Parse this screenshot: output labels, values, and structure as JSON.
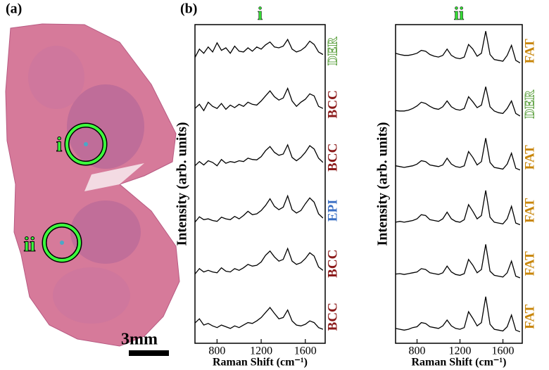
{
  "panel_a": {
    "label": "(a)",
    "markers": [
      "i",
      "ii"
    ],
    "scale_bar": "3mm"
  },
  "panel_b": {
    "label": "(b)"
  },
  "chart_data": [
    {
      "type": "line",
      "title": "i",
      "xlabel": "Raman Shift (cm⁻¹)",
      "ylabel": "Intensity (arb. units)",
      "line_color": "#000000",
      "xlim": [
        600,
        1780
      ],
      "xticks": [
        800,
        1200,
        1600
      ],
      "ylim": [
        0,
        1
      ],
      "x": [
        600,
        640,
        680,
        720,
        760,
        800,
        840,
        880,
        920,
        960,
        1000,
        1040,
        1080,
        1120,
        1160,
        1200,
        1240,
        1280,
        1320,
        1360,
        1400,
        1440,
        1480,
        1520,
        1560,
        1600,
        1640,
        1680,
        1720,
        1760
      ],
      "series": [
        {
          "name": "DER",
          "color": "#6aa84f",
          "outline": true,
          "values": [
            0.35,
            0.55,
            0.45,
            0.6,
            0.48,
            0.7,
            0.52,
            0.58,
            0.45,
            0.62,
            0.5,
            0.48,
            0.58,
            0.5,
            0.6,
            0.55,
            0.65,
            0.72,
            0.6,
            0.58,
            0.62,
            0.78,
            0.55,
            0.48,
            0.52,
            0.6,
            0.74,
            0.66,
            0.48,
            0.42
          ]
        },
        {
          "name": "BCC",
          "color": "#8b1a1a",
          "outline": false,
          "values": [
            0.4,
            0.5,
            0.35,
            0.55,
            0.45,
            0.4,
            0.52,
            0.38,
            0.48,
            0.42,
            0.5,
            0.45,
            0.55,
            0.5,
            0.48,
            0.58,
            0.7,
            0.82,
            0.68,
            0.6,
            0.65,
            0.88,
            0.58,
            0.45,
            0.55,
            0.62,
            0.75,
            0.7,
            0.45,
            0.4
          ]
        },
        {
          "name": "BCC",
          "color": "#8b1a1a",
          "outline": false,
          "values": [
            0.3,
            0.4,
            0.32,
            0.42,
            0.38,
            0.3,
            0.45,
            0.36,
            0.4,
            0.38,
            0.42,
            0.4,
            0.48,
            0.45,
            0.44,
            0.52,
            0.66,
            0.76,
            0.62,
            0.55,
            0.58,
            0.8,
            0.5,
            0.42,
            0.5,
            0.62,
            0.78,
            0.7,
            0.48,
            0.38
          ]
        },
        {
          "name": "EPI",
          "color": "#3a6fc4",
          "outline": false,
          "values": [
            0.22,
            0.35,
            0.28,
            0.3,
            0.26,
            0.24,
            0.34,
            0.3,
            0.28,
            0.36,
            0.3,
            0.38,
            0.48,
            0.4,
            0.42,
            0.5,
            0.62,
            0.78,
            0.6,
            0.52,
            0.58,
            0.85,
            0.52,
            0.44,
            0.5,
            0.66,
            0.8,
            0.7,
            0.42,
            0.32
          ]
        },
        {
          "name": "BCC",
          "color": "#8b1a1a",
          "outline": false,
          "values": [
            0.25,
            0.38,
            0.3,
            0.34,
            0.3,
            0.28,
            0.4,
            0.32,
            0.3,
            0.38,
            0.34,
            0.4,
            0.48,
            0.44,
            0.46,
            0.54,
            0.7,
            0.8,
            0.66,
            0.56,
            0.6,
            0.86,
            0.56,
            0.48,
            0.52,
            0.62,
            0.76,
            0.68,
            0.42,
            0.34
          ]
        },
        {
          "name": "BCC",
          "color": "#8b1a1a",
          "outline": false,
          "values": [
            0.35,
            0.45,
            0.3,
            0.34,
            0.28,
            0.24,
            0.3,
            0.26,
            0.22,
            0.28,
            0.24,
            0.3,
            0.36,
            0.34,
            0.4,
            0.48,
            0.6,
            0.72,
            0.58,
            0.45,
            0.48,
            0.66,
            0.4,
            0.3,
            0.28,
            0.32,
            0.4,
            0.36,
            0.24,
            0.2
          ]
        }
      ]
    },
    {
      "type": "line",
      "title": "ii",
      "xlabel": "Raman Shift (cm⁻¹)",
      "ylabel": "Intensity (arb. units)",
      "line_color": "#000000",
      "xlim": [
        600,
        1780
      ],
      "xticks": [
        800,
        1200,
        1600
      ],
      "ylim": [
        0,
        1
      ],
      "x": [
        600,
        640,
        680,
        720,
        760,
        800,
        840,
        880,
        920,
        960,
        1000,
        1040,
        1080,
        1120,
        1160,
        1200,
        1240,
        1280,
        1320,
        1360,
        1400,
        1440,
        1480,
        1520,
        1560,
        1600,
        1640,
        1680,
        1720,
        1760
      ],
      "series": [
        {
          "name": "FAT",
          "color": "#c8860a",
          "outline": false,
          "values": [
            0.45,
            0.42,
            0.4,
            0.4,
            0.42,
            0.45,
            0.52,
            0.5,
            0.42,
            0.38,
            0.36,
            0.4,
            0.55,
            0.4,
            0.34,
            0.32,
            0.36,
            0.66,
            0.55,
            0.38,
            0.45,
            0.98,
            0.42,
            0.3,
            0.28,
            0.26,
            0.4,
            0.64,
            0.28,
            0.22
          ]
        },
        {
          "name": "DER",
          "color": "#6aa84f",
          "outline": true,
          "values": [
            0.35,
            0.34,
            0.34,
            0.36,
            0.4,
            0.46,
            0.55,
            0.52,
            0.45,
            0.4,
            0.38,
            0.44,
            0.58,
            0.44,
            0.38,
            0.36,
            0.4,
            0.68,
            0.56,
            0.42,
            0.48,
            0.92,
            0.44,
            0.34,
            0.3,
            0.28,
            0.4,
            0.58,
            0.28,
            0.22
          ]
        },
        {
          "name": "FAT",
          "color": "#c8860a",
          "outline": false,
          "values": [
            0.3,
            0.28,
            0.26,
            0.28,
            0.3,
            0.34,
            0.42,
            0.4,
            0.32,
            0.3,
            0.28,
            0.32,
            0.48,
            0.34,
            0.28,
            0.26,
            0.3,
            0.64,
            0.5,
            0.32,
            0.4,
            0.96,
            0.38,
            0.26,
            0.24,
            0.22,
            0.34,
            0.6,
            0.24,
            0.2
          ]
        },
        {
          "name": "FAT",
          "color": "#c8860a",
          "outline": false,
          "values": [
            0.22,
            0.24,
            0.22,
            0.24,
            0.26,
            0.3,
            0.4,
            0.38,
            0.28,
            0.26,
            0.24,
            0.3,
            0.46,
            0.3,
            0.24,
            0.22,
            0.28,
            0.64,
            0.48,
            0.3,
            0.38,
            0.98,
            0.34,
            0.22,
            0.2,
            0.18,
            0.3,
            0.6,
            0.2,
            0.16
          ]
        },
        {
          "name": "FAT",
          "color": "#c8860a",
          "outline": false,
          "values": [
            0.25,
            0.26,
            0.24,
            0.26,
            0.28,
            0.3,
            0.38,
            0.36,
            0.28,
            0.26,
            0.24,
            0.28,
            0.44,
            0.3,
            0.24,
            0.22,
            0.26,
            0.6,
            0.46,
            0.28,
            0.36,
            0.96,
            0.32,
            0.22,
            0.2,
            0.18,
            0.28,
            0.56,
            0.2,
            0.16
          ]
        },
        {
          "name": "FAT",
          "color": "#c8860a",
          "outline": false,
          "values": [
            0.22,
            0.2,
            0.18,
            0.2,
            0.24,
            0.26,
            0.36,
            0.34,
            0.26,
            0.24,
            0.22,
            0.28,
            0.42,
            0.28,
            0.22,
            0.2,
            0.24,
            0.62,
            0.46,
            0.28,
            0.36,
            0.98,
            0.32,
            0.2,
            0.18,
            0.16,
            0.26,
            0.54,
            0.18,
            0.14
          ]
        }
      ]
    }
  ]
}
